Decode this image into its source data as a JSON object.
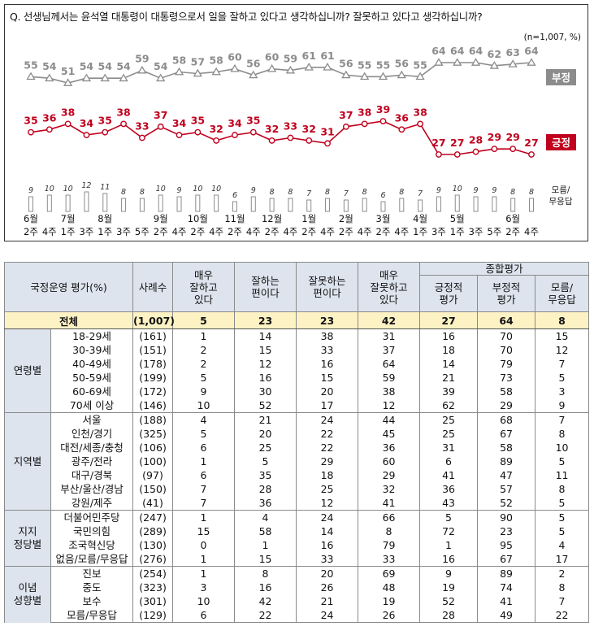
{
  "question": "Q. 선생님께서는 윤석열 대통령이 대통령으로서 일을 잘하고 있다고 생각하십니까? 잘못하고 있다고 생각하십니까?",
  "sample_note": "(n=1,007,  %)",
  "chart_data": {
    "type": "line",
    "x": [
      [
        "6월",
        "2주"
      ],
      [
        "",
        "4주"
      ],
      [
        "7월",
        "1주"
      ],
      [
        "",
        "3주"
      ],
      [
        "8월",
        "1주"
      ],
      [
        "",
        "3주"
      ],
      [
        "",
        "5주"
      ],
      [
        "9월",
        "2주"
      ],
      [
        "",
        "4주"
      ],
      [
        "10월",
        "2주"
      ],
      [
        "",
        "4주"
      ],
      [
        "11월",
        "2주"
      ],
      [
        "",
        "4주"
      ],
      [
        "12월",
        "2주"
      ],
      [
        "",
        "4주"
      ],
      [
        "1월",
        "2주"
      ],
      [
        "",
        "4주"
      ],
      [
        "2월",
        "2주"
      ],
      [
        "",
        "4주"
      ],
      [
        "3월",
        "2주"
      ],
      [
        "",
        "4주"
      ],
      [
        "4월",
        "1주"
      ],
      [
        "",
        "3주"
      ],
      [
        "5월",
        "1주"
      ],
      [
        "",
        "3주"
      ],
      [
        "",
        "5주"
      ],
      [
        "6월",
        "2주"
      ],
      [
        "",
        "4주"
      ]
    ],
    "series": [
      {
        "name": "부정",
        "color": "#8c8c8c",
        "values": [
          55,
          54,
          51,
          54,
          54,
          54,
          59,
          54,
          58,
          57,
          58,
          60,
          56,
          60,
          59,
          61,
          61,
          56,
          55,
          55,
          56,
          55,
          64,
          64,
          64,
          62,
          63,
          64
        ]
      },
      {
        "name": "긍정",
        "color": "#c0001d",
        "values": [
          35,
          36,
          38,
          34,
          35,
          38,
          33,
          37,
          34,
          35,
          32,
          34,
          35,
          32,
          33,
          32,
          31,
          37,
          38,
          39,
          36,
          38,
          27,
          27,
          28,
          29,
          29,
          27
        ]
      },
      {
        "name": "모름/\n무응답",
        "color": "#8c8c8c",
        "values": [
          9,
          10,
          10,
          12,
          11,
          8,
          8,
          10,
          9,
          10,
          10,
          6,
          9,
          8,
          8,
          7,
          8,
          7,
          8,
          6,
          8,
          7,
          9,
          10,
          9,
          9,
          8,
          8
        ]
      }
    ]
  },
  "table": {
    "header": {
      "category": "국정운영 평가(%)",
      "sample": "사례수",
      "very_good": "매우\n잘하고\n있다",
      "good": "잘하는\n편이다",
      "bad": "잘못하는\n편이다",
      "very_bad": "매우\n잘못하고\n있다",
      "overall": "종합평가",
      "positive": "긍정적\n평가",
      "negative": "부정적\n평가",
      "unknown": "모름/\n무응답"
    },
    "total": {
      "label": "전체",
      "values": [
        "(1,007)",
        "5",
        "23",
        "23",
        "42",
        "27",
        "64",
        "8"
      ]
    },
    "groups": [
      {
        "label": "연령별",
        "rows": [
          {
            "label": "18-29세",
            "values": [
              "(161)",
              "1",
              "14",
              "38",
              "31",
              "16",
              "70",
              "15"
            ]
          },
          {
            "label": "30-39세",
            "values": [
              "(151)",
              "2",
              "15",
              "33",
              "37",
              "18",
              "70",
              "12"
            ]
          },
          {
            "label": "40-49세",
            "values": [
              "(178)",
              "2",
              "12",
              "16",
              "64",
              "14",
              "79",
              "7"
            ]
          },
          {
            "label": "50-59세",
            "values": [
              "(199)",
              "5",
              "16",
              "15",
              "59",
              "21",
              "73",
              "5"
            ]
          },
          {
            "label": "60-69세",
            "values": [
              "(172)",
              "9",
              "30",
              "20",
              "38",
              "39",
              "58",
              "3"
            ]
          },
          {
            "label": "70세 이상",
            "values": [
              "(146)",
              "10",
              "52",
              "17",
              "12",
              "62",
              "29",
              "9"
            ]
          }
        ]
      },
      {
        "label": "지역별",
        "rows": [
          {
            "label": "서울",
            "values": [
              "(188)",
              "4",
              "21",
              "24",
              "44",
              "25",
              "68",
              "7"
            ]
          },
          {
            "label": "인천/경기",
            "values": [
              "(325)",
              "5",
              "20",
              "22",
              "45",
              "25",
              "67",
              "8"
            ]
          },
          {
            "label": "대전/세종/충청",
            "values": [
              "(106)",
              "6",
              "25",
              "22",
              "36",
              "31",
              "58",
              "10"
            ]
          },
          {
            "label": "광주/전라",
            "values": [
              "(100)",
              "1",
              "5",
              "29",
              "60",
              "6",
              "89",
              "5"
            ]
          },
          {
            "label": "대구/경북",
            "values": [
              "(97)",
              "6",
              "35",
              "18",
              "29",
              "41",
              "47",
              "11"
            ]
          },
          {
            "label": "부산/울산/경남",
            "values": [
              "(150)",
              "7",
              "28",
              "25",
              "32",
              "36",
              "57",
              "8"
            ]
          },
          {
            "label": "강원/제주",
            "values": [
              "(41)",
              "7",
              "36",
              "12",
              "41",
              "43",
              "52",
              "5"
            ]
          }
        ]
      },
      {
        "label": "지지\n정당별",
        "rows": [
          {
            "label": "더불어민주당",
            "values": [
              "(247)",
              "1",
              "4",
              "24",
              "66",
              "5",
              "90",
              "5"
            ]
          },
          {
            "label": "국민의힘",
            "values": [
              "(289)",
              "15",
              "58",
              "14",
              "8",
              "72",
              "23",
              "5"
            ]
          },
          {
            "label": "조국혁신당",
            "values": [
              "(130)",
              "0",
              "1",
              "16",
              "79",
              "1",
              "95",
              "4"
            ]
          },
          {
            "label": "없음/모름/무응답",
            "values": [
              "(276)",
              "1",
              "15",
              "33",
              "33",
              "16",
              "67",
              "17"
            ]
          }
        ]
      },
      {
        "label": "이념\n성향별",
        "rows": [
          {
            "label": "진보",
            "values": [
              "(254)",
              "1",
              "8",
              "20",
              "69",
              "9",
              "89",
              "2"
            ]
          },
          {
            "label": "중도",
            "values": [
              "(323)",
              "3",
              "16",
              "26",
              "48",
              "19",
              "74",
              "8"
            ]
          },
          {
            "label": "보수",
            "values": [
              "(301)",
              "10",
              "42",
              "21",
              "19",
              "52",
              "41",
              "7"
            ]
          },
          {
            "label": "모름/무응답",
            "values": [
              "(129)",
              "6",
              "22",
              "24",
              "26",
              "28",
              "49",
              "22"
            ]
          }
        ]
      }
    ]
  }
}
